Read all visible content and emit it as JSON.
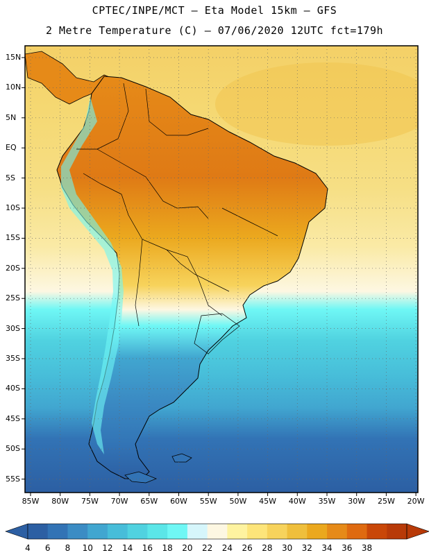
{
  "header": {
    "line1": "CPTEC/INPE/MCT –  Eta Model 15km – GFS",
    "line2": "2 Metre Temperature (C) – 07/06/2020 12UTC fct=179h"
  },
  "axes": {
    "lat_labels": [
      "15N",
      "10N",
      "5N",
      "EQ",
      "5S",
      "10S",
      "15S",
      "20S",
      "25S",
      "30S",
      "35S",
      "40S",
      "45S",
      "50S",
      "55S"
    ],
    "lon_labels": [
      "85W",
      "80W",
      "75W",
      "70W",
      "65W",
      "60W",
      "55W",
      "50W",
      "45W",
      "40W",
      "35W",
      "30W",
      "25W",
      "20W"
    ]
  },
  "colorbar": {
    "labels": [
      "4",
      "6",
      "8",
      "10",
      "12",
      "14",
      "16",
      "18",
      "20",
      "22",
      "24",
      "26",
      "28",
      "30",
      "32",
      "34",
      "36",
      "38"
    ],
    "colors": [
      "#2c5fa3",
      "#3273b5",
      "#3b8cc4",
      "#41a6d0",
      "#47bdd9",
      "#50d2e0",
      "#5be6e8",
      "#6ff7f5",
      "#d6f6fb",
      "#fdf7e2",
      "#fef3a0",
      "#fde57a",
      "#f7d35c",
      "#efbf3c",
      "#eba81e",
      "#e68a18",
      "#df6a10",
      "#c94708",
      "#b83a08"
    ]
  },
  "map": {
    "ocean_north": "#f2c85a",
    "ocean_south_deep": "#2c5fa3"
  }
}
